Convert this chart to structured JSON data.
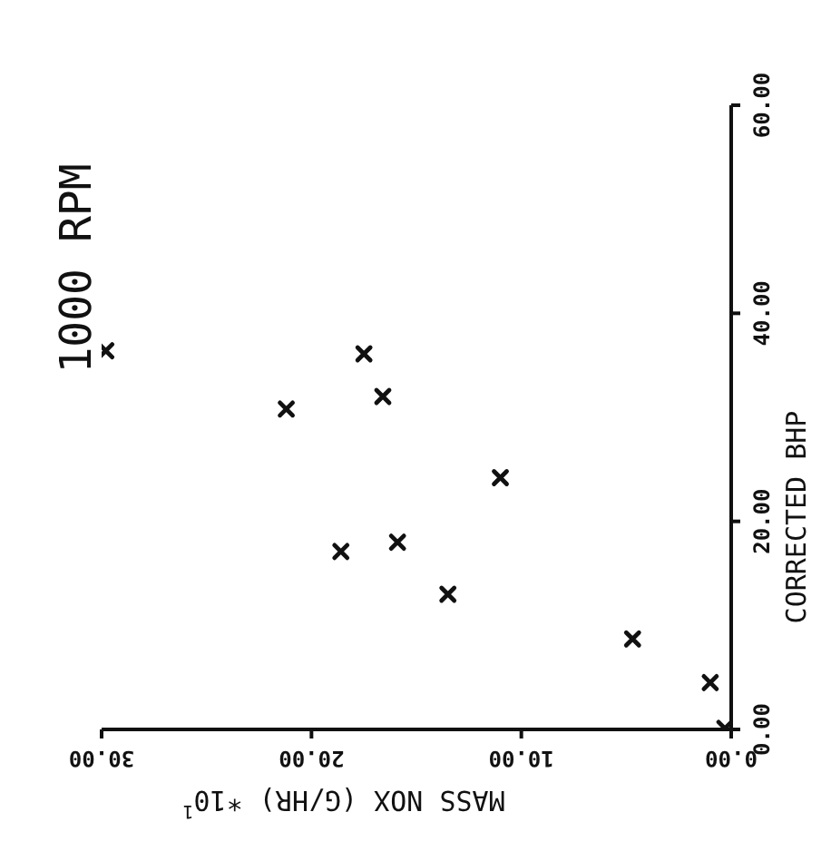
{
  "chart_data": {
    "type": "scatter",
    "title": "1000 RPM",
    "xlabel": "MASS NOX (G/HR) *10$^{1}$",
    "ylabel": "CORRECTED BHP",
    "x": [
      0.3,
      1.0,
      4.7,
      11.0,
      13.5,
      15.9,
      18.6,
      16.6,
      17.5,
      21.2,
      29.8
    ],
    "series": [
      {
        "color": "#111111",
        "values": [
          0.1,
          4.5,
          8.7,
          24.2,
          13.0,
          18.0,
          17.1,
          32.0,
          36.1,
          30.8,
          36.4
        ]
      }
    ],
    "xlim": [
      30,
      0
    ],
    "xticks": [
      {
        "value": 0,
        "label": "0.00"
      },
      {
        "value": 10,
        "label": "10.00"
      },
      {
        "value": 20,
        "label": "20.00"
      },
      {
        "value": 30,
        "label": "30.00"
      }
    ],
    "ylim": [
      0,
      60
    ],
    "yticks": [
      {
        "value": 0,
        "label": "0.00"
      },
      {
        "value": 20,
        "label": "20.00"
      },
      {
        "value": 40,
        "label": "40.00"
      },
      {
        "value": 60,
        "label": "60.00"
      }
    ],
    "marker": "cross",
    "grid": false,
    "legend": false
  }
}
